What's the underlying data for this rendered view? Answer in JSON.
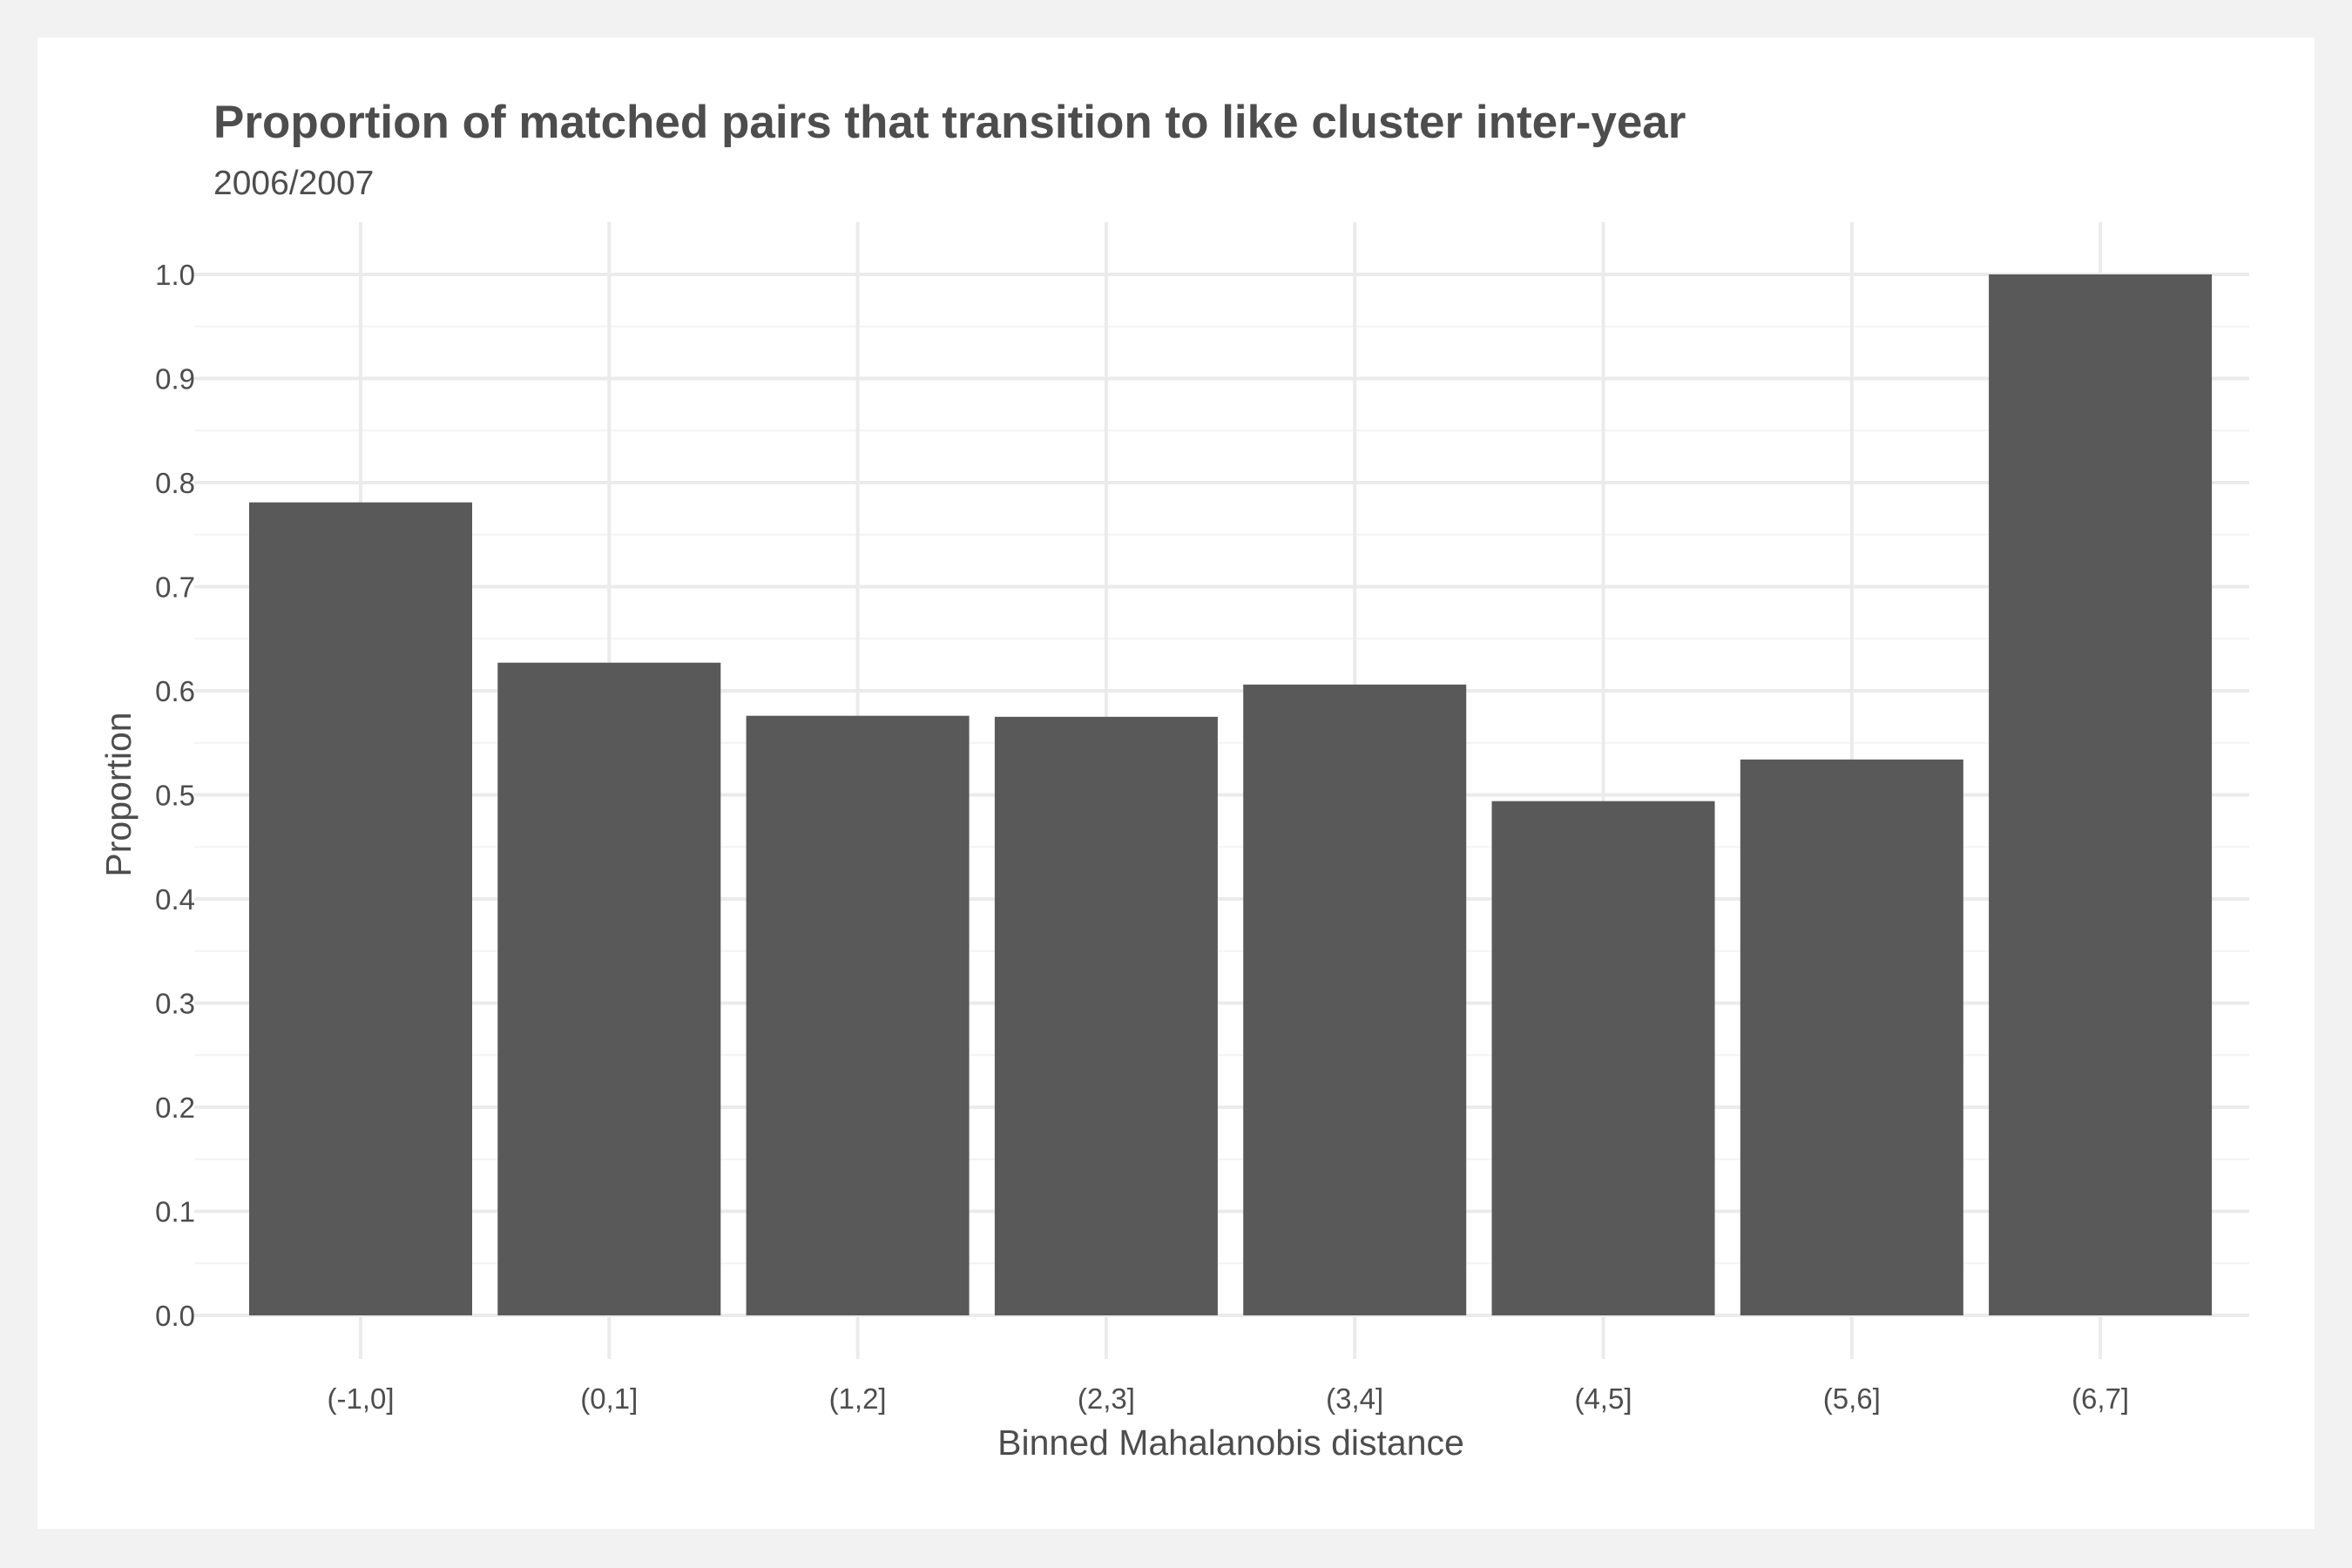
{
  "colors": {
    "background": "#f2f2f2",
    "panel": "#ffffff",
    "bar": "#595959",
    "text": "#4d4d4d",
    "grid": "#ebebeb"
  },
  "chart_data": {
    "type": "bar",
    "title": "Proportion of matched pairs that transition to like cluster inter-year",
    "subtitle": "2006/2007",
    "xlabel": "Binned Mahalanobis distance",
    "ylabel": "Proportion",
    "categories": [
      "(-1,0]",
      "(0,1]",
      "(1,2]",
      "(2,3]",
      "(3,4]",
      "(4,5]",
      "(5,6]",
      "(6,7]"
    ],
    "values": [
      0.781,
      0.627,
      0.576,
      0.575,
      0.606,
      0.494,
      0.534,
      1.0
    ],
    "ylim": [
      0,
      1.05
    ],
    "yticks": [
      0.0,
      0.1,
      0.2,
      0.3,
      0.4,
      0.5,
      0.6,
      0.7,
      0.8,
      0.9,
      1.0
    ],
    "ytick_labels": [
      "0.0",
      "0.1",
      "0.2",
      "0.3",
      "0.4",
      "0.5",
      "0.6",
      "0.7",
      "0.8",
      "0.9",
      "1.0"
    ],
    "grid": true,
    "legend": "none"
  }
}
